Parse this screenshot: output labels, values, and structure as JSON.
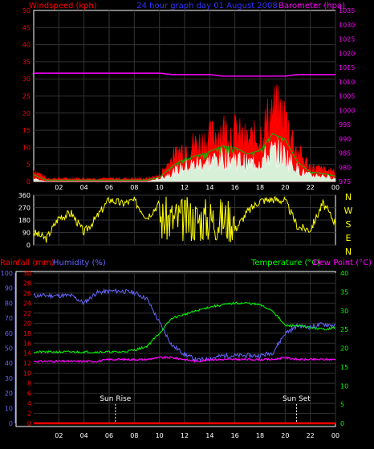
{
  "colors": {
    "background": "#000000",
    "frame": "#ffffff",
    "wind_avg": "#ffffff",
    "wind_gust": "#ff0000",
    "wind_green": "#00c000",
    "barometer": "#ff00ff",
    "direction": "#ffff00",
    "humidity": "#6666ff",
    "rainfall": "#ff0000",
    "temperature": "#00ff00",
    "dewpoint": "#ff00ff",
    "axis_left": "#ff0000",
    "axis_hum": "#6666ff",
    "axis_temp": "#00ff00",
    "grid": "#333333",
    "sun": "#ffffff"
  },
  "header": {
    "title": "24 hour graph day 01 August 2008",
    "left_label": "Windspeed (kph)",
    "right_label": "Barometer (hpa)"
  },
  "bottom_labels": {
    "rainfall": "Rainfall (mm)",
    "humidity": "Humidity (%)",
    "temperature": "Temperature (°C)",
    "dewpoint": "Dew Point (°C)"
  },
  "sun": {
    "rise_label": "Sun Rise",
    "set_label": "Sun Set",
    "rise_hour": 6.5,
    "set_hour": 20.9
  },
  "chart_data": [
    {
      "type": "area",
      "name": "wind",
      "title": "24 hour graph day 01 August 2008",
      "ylabel": "Windspeed (kph)",
      "ylabel_right": "Barometer (hpa)",
      "xlim": [
        0,
        24
      ],
      "ylim": [
        0,
        50
      ],
      "ylim_right": [
        975,
        1035
      ],
      "yticks": [
        "0",
        "5",
        "10",
        "15",
        "20",
        "25",
        "30",
        "35",
        "40",
        "45",
        "50"
      ],
      "yticks_right": [
        "975",
        "980",
        "985",
        "990",
        "995",
        "1000",
        "1005",
        "1010",
        "1015",
        "1020",
        "1025",
        "1030",
        "1035"
      ],
      "xticks": [
        "02",
        "04",
        "06",
        "08",
        "10",
        "12",
        "14",
        "16",
        "18",
        "20",
        "22",
        "00"
      ],
      "hours": [
        0,
        1,
        2,
        3,
        4,
        5,
        6,
        7,
        8,
        9,
        10,
        11,
        12,
        13,
        14,
        15,
        16,
        17,
        18,
        19,
        20,
        21,
        22,
        23,
        24
      ],
      "gust_kph": [
        4,
        1,
        1,
        1,
        1,
        1,
        1,
        1,
        1,
        1,
        2,
        8,
        12,
        13,
        15,
        18,
        17,
        14,
        16,
        25,
        22,
        10,
        5,
        4,
        3
      ],
      "avg_kph": [
        1,
        0,
        0,
        0,
        0,
        0,
        0,
        0,
        0,
        0,
        1,
        3,
        5,
        6,
        7,
        8,
        8,
        6,
        7,
        10,
        9,
        4,
        2,
        2,
        1
      ],
      "barometer_hpa": [
        1013,
        1013,
        1013,
        1013,
        1013,
        1013,
        1013,
        1013,
        1013,
        1013,
        1013,
        1012.5,
        1012.5,
        1012.5,
        1012.5,
        1012,
        1012,
        1012,
        1012,
        1012,
        1012,
        1012.5,
        1012.5,
        1012.5,
        1012.5
      ]
    },
    {
      "type": "line",
      "name": "wind_direction",
      "ylim": [
        0,
        360
      ],
      "yticks": [
        "0",
        "90",
        "180",
        "270",
        "360"
      ],
      "compass_labels": [
        "N",
        "W",
        "S",
        "E",
        "N"
      ],
      "hours": [
        0,
        1,
        2,
        3,
        4,
        5,
        6,
        7,
        8,
        9,
        10,
        11,
        12,
        13,
        14,
        15,
        16,
        17,
        18,
        19,
        20,
        21,
        22,
        23,
        24
      ],
      "direction_deg": [
        90,
        45,
        200,
        230,
        90,
        200,
        330,
        300,
        320,
        200,
        300,
        180,
        200,
        180,
        220,
        170,
        110,
        240,
        320,
        330,
        320,
        130,
        110,
        300,
        160
      ]
    },
    {
      "type": "line",
      "name": "rain_humidity_temperature",
      "xlim": [
        0,
        24
      ],
      "ylim_rain": [
        0,
        30
      ],
      "ylim_humidity": [
        0,
        100
      ],
      "ylim_temperature": [
        0,
        40
      ],
      "yticks_rain": [
        "0",
        "2",
        "4",
        "6",
        "8",
        "10",
        "12",
        "14",
        "16",
        "18",
        "20",
        "22",
        "24",
        "26",
        "28",
        "30"
      ],
      "yticks_humidity": [
        "0",
        "10",
        "20",
        "30",
        "40",
        "50",
        "60",
        "70",
        "80",
        "90",
        "100"
      ],
      "yticks_temperature": [
        "0",
        "5",
        "10",
        "15",
        "20",
        "25",
        "30",
        "35",
        "40"
      ],
      "xticks": [
        "02",
        "04",
        "06",
        "08",
        "10",
        "12",
        "14",
        "16",
        "18",
        "20",
        "22",
        "00"
      ],
      "hours": [
        0,
        1,
        2,
        3,
        4,
        5,
        6,
        7,
        8,
        9,
        10,
        11,
        12,
        13,
        14,
        15,
        16,
        17,
        18,
        19,
        20,
        21,
        22,
        23,
        24
      ],
      "rainfall_mm": [
        0,
        0,
        0,
        0,
        0,
        0,
        0,
        0,
        0,
        0,
        0,
        0,
        0,
        0,
        0,
        0,
        0,
        0,
        0,
        0,
        0,
        0,
        0,
        0,
        0
      ],
      "humidity_pct": [
        85,
        85,
        85,
        85,
        80,
        87,
        88,
        88,
        87,
        83,
        67,
        52,
        46,
        42,
        43,
        45,
        45,
        45,
        45,
        47,
        60,
        65,
        64,
        66,
        65
      ],
      "temperature_c": [
        19,
        19,
        19,
        19,
        19,
        19,
        19,
        19,
        19.5,
        20.5,
        24,
        28,
        29,
        30,
        31,
        31.5,
        32,
        32,
        31.5,
        30,
        26,
        26,
        25.5,
        25,
        25.5
      ],
      "dewpoint_c": [
        16.5,
        16.5,
        16.5,
        16.5,
        16.5,
        16.5,
        17,
        17,
        17,
        17,
        17.5,
        17.5,
        17,
        16.5,
        17,
        17,
        17,
        17,
        17,
        17,
        17.5,
        17,
        17,
        17,
        17
      ]
    }
  ]
}
